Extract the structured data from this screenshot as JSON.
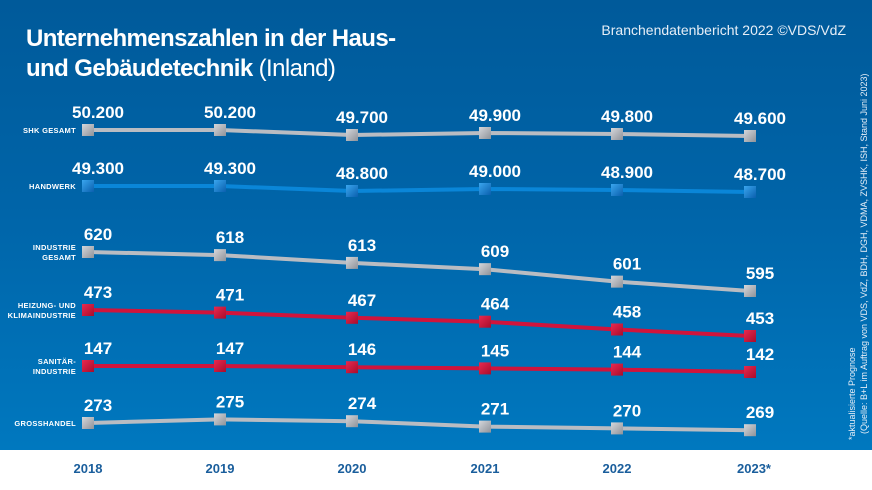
{
  "header": {
    "title_bold_line1": "Unternehmenszahlen in der Haus-",
    "title_bold_line2": "und Gebäudetechnik",
    "title_light": "(Inland)",
    "credit": "Branchendatenbericht 2022 ©VDS/VdZ"
  },
  "footnote": {
    "line1": "*aktualisierte Prognose",
    "line2": "(Quelle: B+L im Auftrag von VDS, VdZ, BDH, DGH, VDMA, ZVSHK, ISH, Stand Juni 2023)"
  },
  "colors": {
    "gray_line": "#b9bcc2",
    "blue_line": "#0a86d8",
    "red_line": "#d0143c",
    "background_top": "#005a9a",
    "background_bottom": "#0078bf",
    "year_text": "#1a5e9c"
  },
  "chart_data": {
    "type": "line",
    "title": "Unternehmenszahlen in der Haus- und Gebäudetechnik (Inland)",
    "x": [
      "2018",
      "2019",
      "2020",
      "2021",
      "2022",
      "2023*"
    ],
    "xlabel": "",
    "ylabel": "",
    "grid": false,
    "legend": "left-inline",
    "series": [
      {
        "name": "SHK GESAMT",
        "label_lines": [
          "SHK GESAMT"
        ],
        "color": "gray",
        "values": [
          50200,
          50200,
          49700,
          49900,
          49800,
          49600
        ],
        "display": [
          "50.200",
          "50.200",
          "49.700",
          "49.900",
          "49.800",
          "49.600"
        ]
      },
      {
        "name": "HANDWERK",
        "label_lines": [
          "HANDWERK"
        ],
        "color": "blue",
        "values": [
          49300,
          49300,
          48800,
          49000,
          48900,
          48700
        ],
        "display": [
          "49.300",
          "49.300",
          "48.800",
          "49.000",
          "48.900",
          "48.700"
        ]
      },
      {
        "name": "INDUSTRIE GESAMT",
        "label_lines": [
          "INDUSTRIE",
          "GESAMT"
        ],
        "color": "gray",
        "values": [
          620,
          618,
          613,
          609,
          601,
          595
        ],
        "display": [
          "620",
          "618",
          "613",
          "609",
          "601",
          "595"
        ]
      },
      {
        "name": "HEIZUNG- UND KLIMAINDUSTRIE",
        "label_lines": [
          "HEIZUNG- UND",
          "KLIMAINDUSTRIE"
        ],
        "color": "red",
        "values": [
          473,
          471,
          467,
          464,
          458,
          453
        ],
        "display": [
          "473",
          "471",
          "467",
          "464",
          "458",
          "453"
        ]
      },
      {
        "name": "SANITÄR-INDUSTRIE",
        "label_lines": [
          "SANITÄR-",
          "INDUSTRIE"
        ],
        "color": "red",
        "values": [
          147,
          147,
          146,
          145,
          144,
          142
        ],
        "display": [
          "147",
          "147",
          "146",
          "145",
          "144",
          "142"
        ]
      },
      {
        "name": "GROSSHANDEL",
        "label_lines": [
          "GROSSHANDEL"
        ],
        "color": "gray",
        "values": [
          273,
          275,
          274,
          271,
          270,
          269
        ],
        "display": [
          "273",
          "275",
          "274",
          "271",
          "270",
          "269"
        ]
      }
    ],
    "annotations": [
      "*aktualisierte Prognose"
    ]
  }
}
